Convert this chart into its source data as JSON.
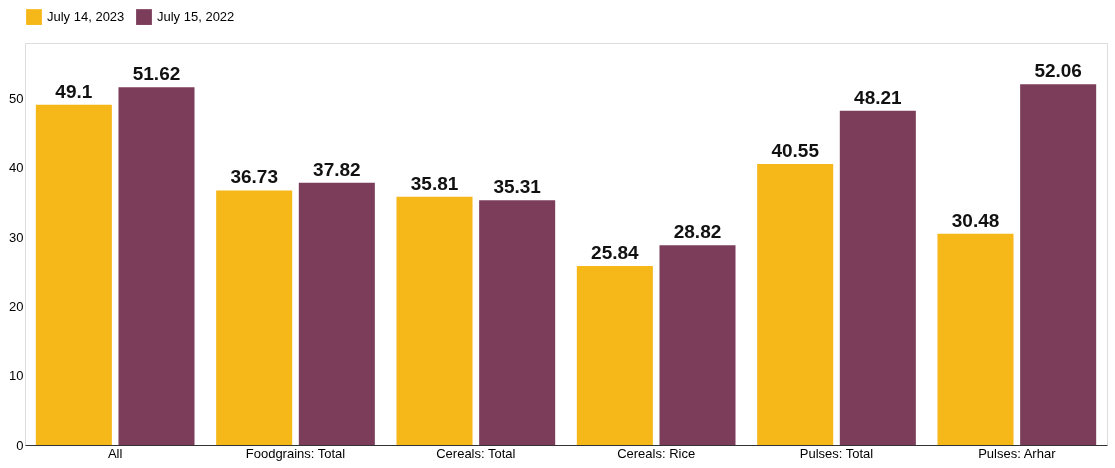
{
  "chart_data": {
    "type": "bar",
    "categories": [
      "All",
      "Foodgrains: Total",
      "Cereals: Total",
      "Cereals: Rice",
      "Pulses: Total",
      "Pulses: Arhar"
    ],
    "series": [
      {
        "name": "July 14, 2023",
        "color": "#f6b819",
        "values": [
          49.1,
          36.73,
          35.81,
          25.84,
          40.55,
          30.48
        ]
      },
      {
        "name": "July 15, 2022",
        "color": "#7c3d5b",
        "values": [
          51.62,
          37.82,
          35.31,
          28.82,
          48.21,
          52.06
        ]
      }
    ],
    "ylim": [
      0,
      58
    ],
    "yticks": [
      0,
      10,
      20,
      30,
      40,
      50
    ],
    "grid": false,
    "legend": "top",
    "data_labels": true
  }
}
